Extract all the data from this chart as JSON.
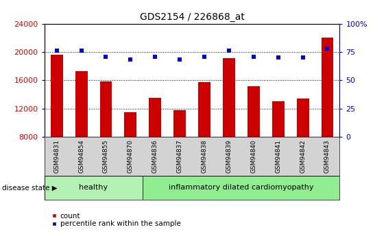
{
  "title": "GDS2154 / 226868_at",
  "samples": [
    "GSM94831",
    "GSM94854",
    "GSM94855",
    "GSM94870",
    "GSM94836",
    "GSM94837",
    "GSM94838",
    "GSM94839",
    "GSM94840",
    "GSM94841",
    "GSM94842",
    "GSM94843"
  ],
  "counts": [
    19600,
    17300,
    15800,
    11500,
    13500,
    11800,
    15700,
    19100,
    15200,
    13000,
    13400,
    22000
  ],
  "percentiles": [
    76,
    76,
    71,
    68,
    71,
    68,
    71,
    76,
    71,
    70,
    70,
    78
  ],
  "healthy_count": 4,
  "disease_state_labels": [
    "healthy",
    "inflammatory dilated cardiomyopathy"
  ],
  "bar_color": "#CC0000",
  "dot_color": "#0000CC",
  "ylim_left": [
    8000,
    24000
  ],
  "yticks_left": [
    8000,
    12000,
    16000,
    20000,
    24000
  ],
  "ylim_right": [
    0,
    100
  ],
  "yticks_right": [
    0,
    25,
    50,
    75,
    100
  ],
  "right_tick_labels": [
    "0",
    "25",
    "50",
    "75",
    "100%"
  ],
  "healthy_bg": "#b3f0b3",
  "disease_bg": "#90EE90",
  "label_area_bg": "#d3d3d3",
  "legend_count_label": "count",
  "legend_pct_label": "percentile rank within the sample",
  "disease_state_text": "disease state",
  "left_axis_color": "#CC0000",
  "right_axis_color": "#0000CC",
  "title_fontsize": 10,
  "bar_width": 0.5,
  "tick_fontsize": 8,
  "sample_fontsize": 6.5,
  "disease_fontsize": 8
}
